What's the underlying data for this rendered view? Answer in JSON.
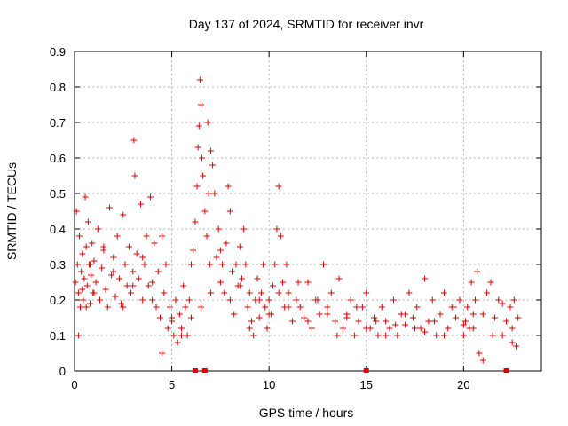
{
  "chart_data": {
    "type": "scatter",
    "title": "Day 137 of 2024, SRMTID for receiver invr",
    "xlabel": "GPS time / hours",
    "ylabel": "SRMTID / TECUs",
    "xlim": [
      0,
      24
    ],
    "ylim": [
      0,
      0.9
    ],
    "xticks": [
      0,
      5,
      10,
      15,
      20
    ],
    "yticks": [
      0,
      0.1,
      0.2,
      0.3,
      0.4,
      0.5,
      0.6,
      0.7,
      0.8,
      0.9
    ],
    "grid": true,
    "marker": "+",
    "series": [
      {
        "name": "SRMTID",
        "color": "#e00000",
        "x": [
          0.05,
          0.1,
          0.15,
          0.2,
          0.25,
          0.3,
          0.35,
          0.4,
          0.45,
          0.5,
          0.55,
          0.6,
          0.65,
          0.7,
          0.75,
          0.8,
          0.85,
          0.9,
          0.95,
          1.0,
          1.1,
          1.2,
          1.3,
          1.4,
          1.5,
          1.6,
          1.7,
          1.8,
          1.9,
          2.0,
          2.1,
          2.2,
          2.3,
          2.4,
          2.5,
          2.6,
          2.7,
          2.8,
          2.9,
          3.0,
          3.05,
          3.1,
          3.2,
          3.3,
          3.4,
          3.5,
          3.6,
          3.7,
          3.8,
          3.9,
          4.0,
          4.1,
          4.2,
          4.3,
          4.4,
          4.5,
          4.6,
          4.7,
          4.8,
          4.9,
          5.0,
          5.1,
          5.2,
          5.3,
          5.4,
          5.5,
          5.6,
          5.7,
          5.8,
          5.9,
          6.0,
          6.1,
          6.2,
          6.3,
          6.35,
          6.4,
          6.45,
          6.5,
          6.55,
          6.6,
          6.7,
          6.8,
          6.85,
          6.9,
          6.95,
          7.0,
          7.1,
          7.2,
          7.3,
          7.4,
          7.5,
          7.6,
          7.7,
          7.8,
          7.9,
          8.0,
          8.1,
          8.2,
          8.3,
          8.4,
          8.5,
          8.6,
          8.7,
          8.8,
          8.9,
          9.0,
          9.1,
          9.2,
          9.3,
          9.4,
          9.5,
          9.6,
          9.7,
          9.8,
          9.9,
          10.0,
          10.1,
          10.2,
          10.3,
          10.4,
          10.5,
          10.6,
          10.7,
          10.8,
          10.9,
          11.0,
          11.2,
          11.4,
          11.6,
          11.8,
          12.0,
          12.2,
          12.4,
          12.6,
          12.8,
          13.0,
          13.2,
          13.4,
          13.6,
          13.8,
          14.0,
          14.2,
          14.4,
          14.6,
          14.8,
          15.0,
          15.2,
          15.4,
          15.6,
          15.8,
          16.0,
          16.2,
          16.4,
          16.6,
          16.8,
          17.0,
          17.2,
          17.4,
          17.6,
          17.8,
          18.0,
          18.2,
          18.4,
          18.6,
          18.8,
          19.0,
          19.2,
          19.4,
          19.6,
          19.8,
          20.0,
          20.1,
          20.2,
          20.3,
          20.4,
          20.5,
          20.6,
          20.7,
          20.8,
          21.0,
          21.2,
          21.4,
          21.6,
          21.8,
          22.0,
          22.2,
          22.4,
          22.5,
          22.6,
          22.7,
          22.8,
          0.2,
          0.4,
          0.6,
          0.8,
          1.0,
          1.5,
          2.0,
          2.5,
          3.0,
          3.5,
          4.0,
          4.5,
          5.0,
          5.5,
          6.0,
          6.5,
          7.0,
          7.5,
          8.0,
          8.5,
          9.0,
          9.5,
          10.0,
          10.5,
          11.0,
          11.5,
          12.0,
          12.5,
          13.0,
          13.5,
          14.0,
          14.5,
          15.0,
          15.5,
          16.0,
          16.5,
          17.0,
          17.5,
          18.0,
          18.5,
          19.0,
          19.5,
          20.0,
          20.5,
          21.0,
          21.5,
          22.0,
          22.5
        ],
        "y": [
          0.25,
          0.45,
          0.3,
          0.22,
          0.38,
          0.18,
          0.28,
          0.33,
          0.2,
          0.26,
          0.49,
          0.35,
          0.24,
          0.42,
          0.3,
          0.19,
          0.27,
          0.36,
          0.22,
          0.31,
          0.25,
          0.4,
          0.2,
          0.29,
          0.34,
          0.23,
          0.18,
          0.46,
          0.27,
          0.32,
          0.21,
          0.38,
          0.26,
          0.19,
          0.44,
          0.3,
          0.24,
          0.35,
          0.22,
          0.28,
          0.65,
          0.55,
          0.33,
          0.26,
          0.47,
          0.2,
          0.3,
          0.38,
          0.24,
          0.49,
          0.25,
          0.36,
          0.18,
          0.28,
          0.15,
          0.05,
          0.22,
          0.3,
          0.12,
          0.18,
          0.14,
          0.1,
          0.2,
          0.08,
          0.16,
          0.12,
          0.24,
          0.18,
          0.1,
          0.2,
          0.15,
          0.34,
          0.42,
          0.52,
          0.63,
          0.69,
          0.82,
          0.75,
          0.6,
          0.55,
          0.45,
          0.38,
          0.7,
          0.5,
          0.3,
          0.62,
          0.58,
          0.5,
          0.32,
          0.4,
          0.25,
          0.3,
          0.22,
          0.36,
          0.52,
          0.2,
          0.28,
          0.16,
          0.3,
          0.24,
          0.35,
          0.26,
          0.4,
          0.3,
          0.18,
          0.22,
          0.14,
          0.1,
          0.2,
          0.26,
          0.15,
          0.22,
          0.3,
          0.18,
          0.12,
          0.2,
          0.16,
          0.24,
          0.3,
          0.4,
          0.52,
          0.38,
          0.25,
          0.18,
          0.3,
          0.22,
          0.14,
          0.2,
          0.18,
          0.15,
          0.25,
          0.12,
          0.2,
          0.16,
          0.3,
          0.18,
          0.22,
          0.14,
          0.26,
          0.12,
          0.16,
          0.2,
          0.1,
          0.14,
          0.18,
          0.22,
          0.12,
          0.15,
          0.1,
          0.18,
          0.14,
          0.12,
          0.2,
          0.1,
          0.16,
          0.13,
          0.22,
          0.15,
          0.18,
          0.12,
          0.26,
          0.14,
          0.2,
          0.1,
          0.16,
          0.22,
          0.12,
          0.18,
          0.15,
          0.2,
          0.1,
          0.14,
          0.18,
          0.12,
          0.25,
          0.16,
          0.2,
          0.28,
          0.05,
          0.03,
          0.22,
          0.25,
          0.15,
          0.2,
          0.1,
          0.14,
          0.18,
          0.12,
          0.2,
          0.07,
          0.15,
          0.1,
          0.23,
          0.18,
          0.3,
          0.22,
          0.35,
          0.28,
          0.18,
          0.24,
          0.32,
          0.2,
          0.38,
          0.15,
          0.1,
          0.3,
          0.18,
          0.22,
          0.34,
          0.45,
          0.24,
          0.12,
          0.2,
          0.16,
          0.22,
          0.18,
          0.25,
          0.14,
          0.2,
          0.16,
          0.1,
          0.15,
          0.18,
          0.12,
          0.14,
          0.1,
          0.13,
          0.16,
          0.12,
          0.11,
          0.14,
          0.1,
          0.18,
          0.13,
          0.12,
          0.16,
          0.1,
          0.19,
          0.08
        ],
        "zero_points_x": [
          6.2,
          6.7,
          15.0,
          22.2
        ]
      }
    ]
  }
}
